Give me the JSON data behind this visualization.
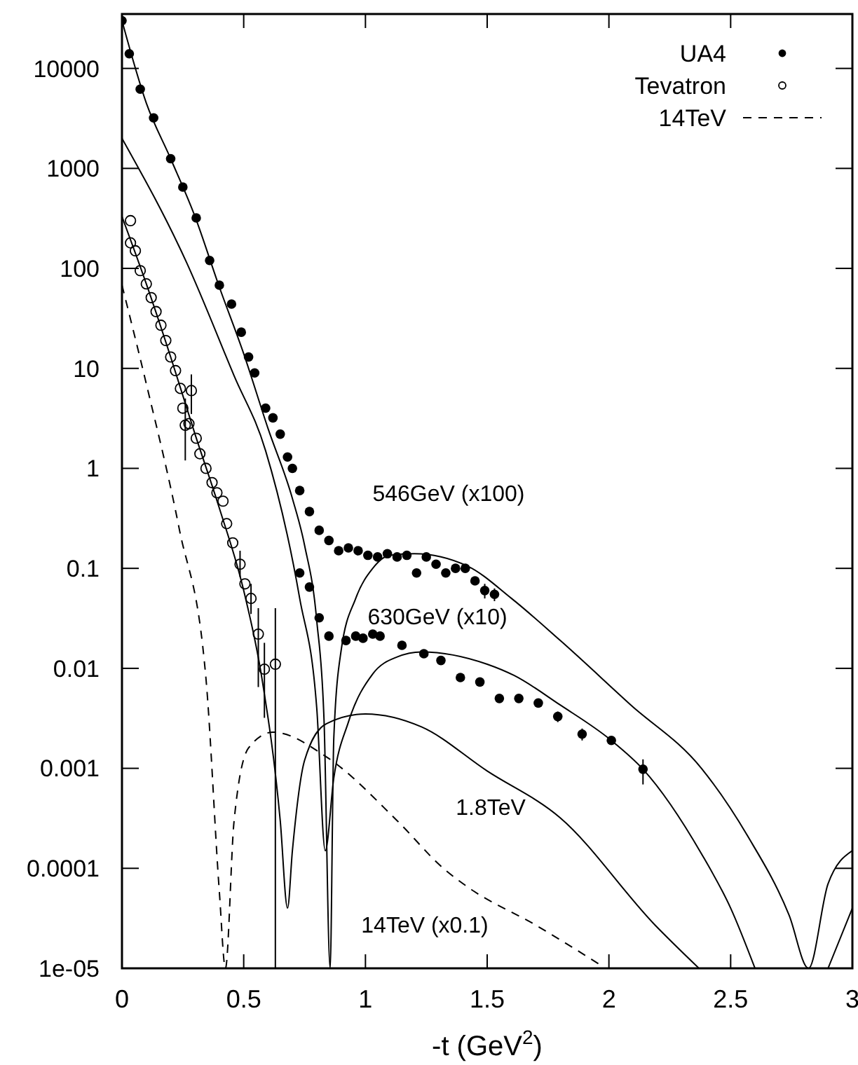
{
  "chart_data": {
    "type": "scatter",
    "xlabel": "-t (GeV$^{2}$)",
    "log": "y",
    "legend": "top right",
    "grid": false,
    "xlim": [
      0,
      3
    ],
    "xticks": [
      0,
      0.5,
      1,
      1.5,
      2,
      2.5,
      3
    ],
    "ylim": [
      1e-05,
      35000
    ],
    "yticks": [
      {
        "value": 1e-05,
        "label": "1e-05"
      },
      0.0001,
      0.001,
      0.01,
      0.1,
      1,
      10,
      100,
      1000,
      10000
    ],
    "series": [
      {
        "name": "UA4",
        "marker": "circle",
        "color": "#000000",
        "x": [
          0,
          0.03,
          0.075,
          0.13,
          0.2,
          0.25,
          0.305,
          0.36,
          0.4,
          0.45,
          0.49,
          0.52,
          0.545,
          0.59,
          0.62,
          0.65,
          0.68,
          0.7,
          0.73,
          0.77,
          0.81,
          0.85,
          0.89,
          0.93,
          0.97,
          1.01,
          1.05,
          1.09,
          1.13,
          1.17,
          1.21,
          1.25,
          1.29,
          1.33,
          1.37,
          1.41,
          1.45,
          1.49,
          1.53,
          0.73,
          0.77,
          0.81,
          0.85,
          0.92,
          0.96,
          0.99,
          1.03,
          1.06,
          1.15,
          1.24,
          1.31,
          1.39,
          1.47,
          1.55,
          1.63,
          1.71,
          1.79,
          1.89,
          2.01,
          2.14
        ],
        "values": [
          30000,
          14000,
          6200,
          3200,
          1250,
          650,
          320,
          120,
          68,
          44,
          23,
          13,
          9,
          4,
          3.2,
          2.2,
          1.3,
          1.0,
          0.6,
          0.37,
          0.24,
          0.19,
          0.15,
          0.16,
          0.15,
          0.135,
          0.13,
          0.14,
          0.13,
          0.135,
          0.09,
          0.13,
          0.11,
          0.09,
          0.1,
          0.1,
          0.075,
          0.06,
          0.055,
          0.09,
          0.065,
          0.032,
          0.021,
          0.019,
          0.021,
          0.02,
          0.022,
          0.021,
          0.017,
          0.014,
          0.012,
          0.0081,
          0.0073,
          0.005,
          0.005,
          0.0045,
          0.0033,
          0.0022,
          0.0019,
          0.00098
        ],
        "errors": [
          null,
          null,
          null,
          null,
          null,
          null,
          null,
          null,
          null,
          null,
          null,
          null,
          null,
          null,
          null,
          null,
          null,
          null,
          null,
          null,
          null,
          null,
          null,
          null,
          null,
          null,
          null,
          null,
          null,
          null,
          null,
          null,
          null,
          null,
          null,
          null,
          null,
          0.01,
          0.008,
          null,
          null,
          null,
          null,
          null,
          null,
          null,
          null,
          null,
          null,
          null,
          null,
          null,
          null,
          null,
          null,
          null,
          0.0004,
          0.0003,
          null,
          [
            0.00069,
            0.00123
          ]
        ]
      },
      {
        "name": "Tevatron",
        "marker": "circle-open",
        "color": "#000000",
        "x": [
          0.035,
          0.035,
          0.055,
          0.075,
          0.1,
          0.12,
          0.14,
          0.16,
          0.18,
          0.2,
          0.22,
          0.24,
          0.25,
          0.26,
          0.275,
          0.285,
          0.305,
          0.32,
          0.345,
          0.37,
          0.39,
          0.415,
          0.43,
          0.455,
          0.485,
          0.505,
          0.53,
          0.56,
          0.585,
          0.63
        ],
        "values": [
          300,
          180,
          150,
          95,
          70,
          51,
          37,
          27,
          19,
          13,
          9.5,
          6.3,
          4,
          2.7,
          2.8,
          6,
          2,
          1.4,
          1.0,
          0.72,
          0.57,
          0.47,
          0.28,
          0.18,
          0.11,
          0.07,
          0.05,
          0.022,
          0.0098,
          0.011
        ],
        "errors": [
          null,
          null,
          null,
          null,
          null,
          null,
          null,
          null,
          null,
          null,
          null,
          null,
          null,
          [
            1.2,
            5
          ],
          null,
          [
            3.5,
            8.7
          ],
          null,
          null,
          null,
          null,
          null,
          null,
          null,
          null,
          [
            0.082,
            0.15
          ],
          null,
          [
            0.035,
            0.07
          ],
          [
            0.0065,
            0.04
          ],
          [
            0.0032,
            0.018
          ],
          [
            1e-05,
            0.04
          ]
        ]
      },
      {
        "type": "line",
        "line_style": "solid",
        "color": "#000000",
        "x": [
          0,
          0.1,
          0.2,
          0.3,
          0.4,
          0.5,
          0.6,
          0.7,
          0.75,
          0.8,
          0.83,
          0.855,
          0.87,
          0.9,
          0.96,
          1.03,
          1.1,
          1.2,
          1.42,
          1.6,
          1.8,
          2.09,
          2.38,
          2.57,
          2.74,
          2.82,
          2.9,
          3.0
        ],
        "values": [
          30000,
          4500,
          1250,
          330,
          65,
          14,
          2.5,
          0.5,
          0.17,
          0.03,
          0.003,
          1e-05,
          0.002,
          0.015,
          0.05,
          0.1,
          0.135,
          0.14,
          0.105,
          0.05,
          0.019,
          0.0043,
          0.001,
          0.00021,
          3.4e-05,
          1e-05,
          7e-05,
          0.00015
        ]
      },
      {
        "type": "line",
        "line_style": "solid",
        "color": "#000000",
        "x": [
          0,
          0.265,
          0.46,
          0.59,
          0.73,
          0.8,
          0.835,
          0.87,
          0.93,
          1.03,
          1.13,
          1.23,
          1.5,
          1.61,
          1.8,
          2.01,
          2.14,
          2.38,
          2.5,
          2.6,
          2.75,
          2.9,
          3.0
        ],
        "values": [
          2000,
          115,
          8.5,
          1.5,
          0.05,
          0.004,
          0.00015,
          0.0008,
          0.0029,
          0.0088,
          0.013,
          0.0146,
          0.011,
          0.0085,
          0.0043,
          0.0019,
          0.00098,
          0.00014,
          4e-05,
          1e-05,
          null,
          1e-05,
          4e-05
        ]
      },
      {
        "type": "line",
        "line_style": "solid",
        "color": "#000000",
        "x": [
          0,
          0.1,
          0.2,
          0.3,
          0.4,
          0.5,
          0.575,
          0.65,
          0.68,
          0.7,
          0.75,
          0.84,
          1.0,
          1.23,
          1.5,
          1.8,
          2.19,
          2.37
        ],
        "values": [
          330,
          70,
          13,
          2.2,
          0.4,
          0.06,
          0.0079,
          0.0003,
          4e-05,
          0.00015,
          0.0012,
          0.0028,
          0.0035,
          0.0026,
          0.00094,
          0.00032,
          2.7e-05,
          1e-05
        ]
      },
      {
        "name": "14TeV",
        "type": "line",
        "line_style": "dashed",
        "color": "#000000",
        "x": [
          0,
          0.1,
          0.235,
          0.345,
          0.4,
          0.425,
          0.46,
          0.52,
          0.62,
          0.84,
          1.13,
          1.32,
          1.42,
          1.7,
          1.96
        ],
        "values": [
          68,
          7,
          0.25,
          0.0079,
          5.8e-05,
          1e-05,
          0.00029,
          0.0016,
          0.0023,
          0.0013,
          0.0003,
          0.0001,
          6.5e-05,
          2.7e-05,
          1.1e-05
        ]
      }
    ],
    "annotations": [
      "546GeV (x100)",
      "630GeV (x10)",
      "1.8TeV",
      "14TeV (x0.1)"
    ]
  }
}
